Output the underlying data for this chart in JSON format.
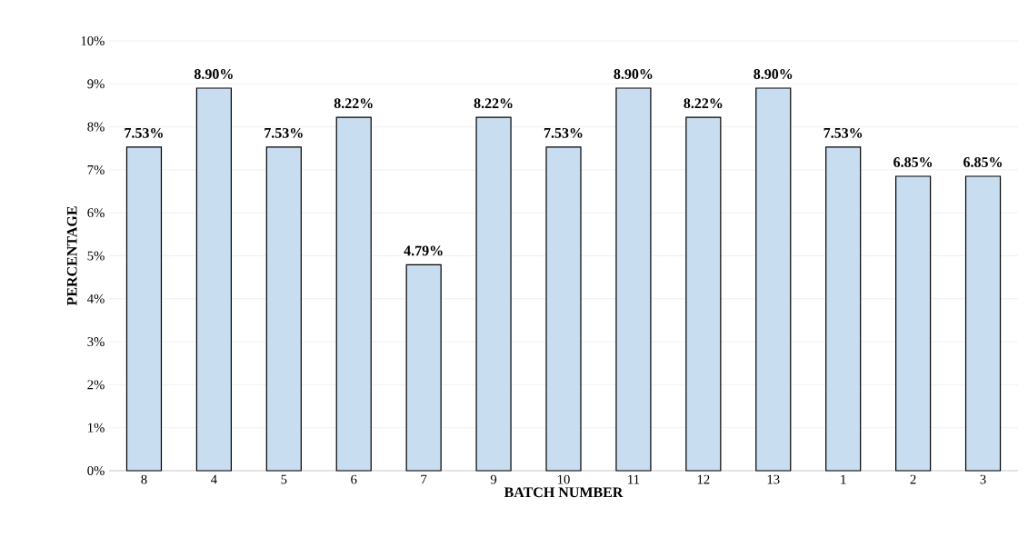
{
  "chart_data": {
    "type": "bar",
    "xlabel": "BATCH NUMBER",
    "ylabel": "PERCENTAGE",
    "categories": [
      "8",
      "4",
      "5",
      "6",
      "7",
      "9",
      "10",
      "11",
      "12",
      "13",
      "1",
      "2",
      "3"
    ],
    "values": [
      7.53,
      8.9,
      7.53,
      8.22,
      4.79,
      8.22,
      7.53,
      8.9,
      8.22,
      8.9,
      7.53,
      6.85,
      6.85
    ],
    "value_labels": [
      "7.53%",
      "8.90%",
      "7.53%",
      "8.22%",
      "4.79%",
      "8.22%",
      "7.53%",
      "8.90%",
      "8.22%",
      "8.90%",
      "7.53%",
      "6.85%",
      "6.85%"
    ],
    "color": "#c9ddf0",
    "ylim": [
      0,
      10
    ],
    "yticks": [
      {
        "value": 0,
        "label": "0%"
      },
      {
        "value": 1,
        "label": "1%"
      },
      {
        "value": 2,
        "label": "2%"
      },
      {
        "value": 3,
        "label": "3%"
      },
      {
        "value": 4,
        "label": "4%"
      },
      {
        "value": 5,
        "label": "5%"
      },
      {
        "value": 6,
        "label": "6%"
      },
      {
        "value": 7,
        "label": "7%"
      },
      {
        "value": 8,
        "label": "8%"
      },
      {
        "value": 9,
        "label": "9%"
      },
      {
        "value": 10,
        "label": "10%"
      }
    ],
    "grid": "y"
  }
}
